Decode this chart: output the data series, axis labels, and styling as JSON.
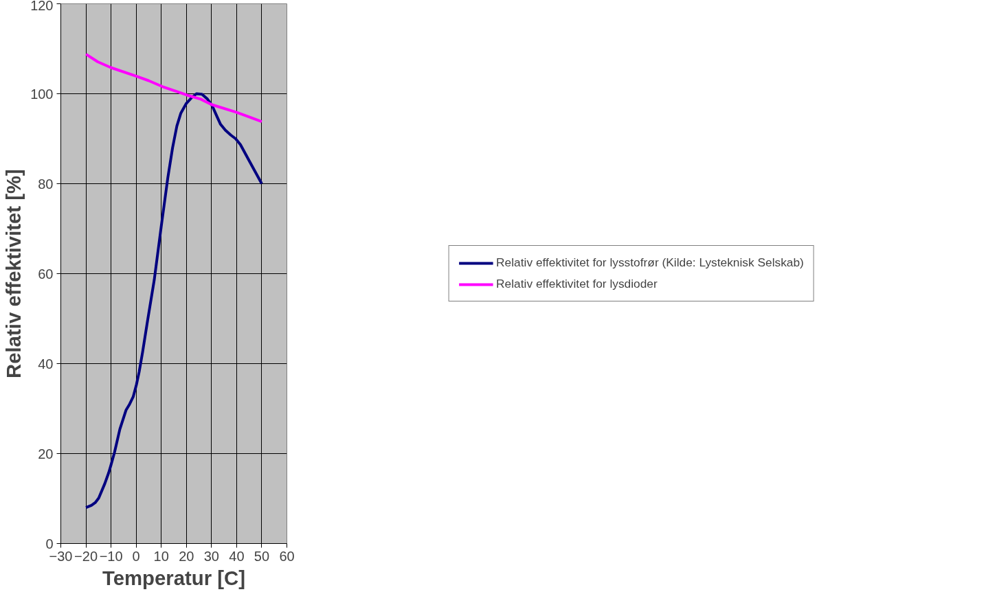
{
  "chart_data": {
    "type": "line",
    "xlabel": "Temperatur [C]",
    "ylabel": "Relativ effektivitet [%]",
    "xlim": [
      -30,
      60
    ],
    "xticks": [
      -30,
      -20,
      -10,
      0,
      10,
      20,
      30,
      40,
      50,
      60
    ],
    "ylim": [
      0,
      120
    ],
    "yticks": [
      0,
      20,
      40,
      60,
      80,
      100,
      120
    ],
    "grid": true,
    "legend": "right",
    "marker": "none",
    "line_style": "solid",
    "series": [
      {
        "name": "Relativ effektivitet for lysstofrør (Kilde: Lysteknisk Selskab)",
        "color": "#000080",
        "x": [
          -20,
          -17.8,
          -16.3,
          -14.9,
          -12.5,
          -10.9,
          -10.1,
          -8.6,
          -6.5,
          -4.0,
          -2.6,
          -1.2,
          0.1,
          1.2,
          2.6,
          4.5,
          7.2,
          10.1,
          12.6,
          14.5,
          16.2,
          17.8,
          19.9,
          22.2,
          24.0,
          26.2,
          28.4,
          30.3,
          32.2,
          33.6,
          35.5,
          37.7,
          39.6,
          41.5,
          44.8,
          50
        ],
        "values": [
          8.0,
          8.5,
          9.1,
          10.1,
          13.3,
          15.8,
          17.3,
          20.3,
          25.4,
          29.7,
          31.0,
          32.6,
          35.3,
          38.2,
          42.7,
          49.4,
          58.6,
          71.0,
          81.3,
          88.0,
          92.8,
          95.7,
          97.8,
          99.2,
          100,
          99.9,
          98.8,
          97.3,
          94.9,
          93.2,
          91.9,
          90.8,
          90.0,
          88.7,
          85.3,
          80
        ]
      },
      {
        "name": "Relativ effektivitet for lysdioder",
        "color": "#ff00ff",
        "x": [
          -20,
          -15.3,
          -10,
          0,
          5,
          10.4,
          20.2,
          25.7,
          30,
          39.8,
          44.7,
          50
        ],
        "values": [
          108.8,
          107.1,
          105.8,
          103.9,
          102.9,
          101.6,
          99.7,
          98.8,
          97.6,
          95.9,
          94.9,
          93.8
        ]
      }
    ]
  }
}
